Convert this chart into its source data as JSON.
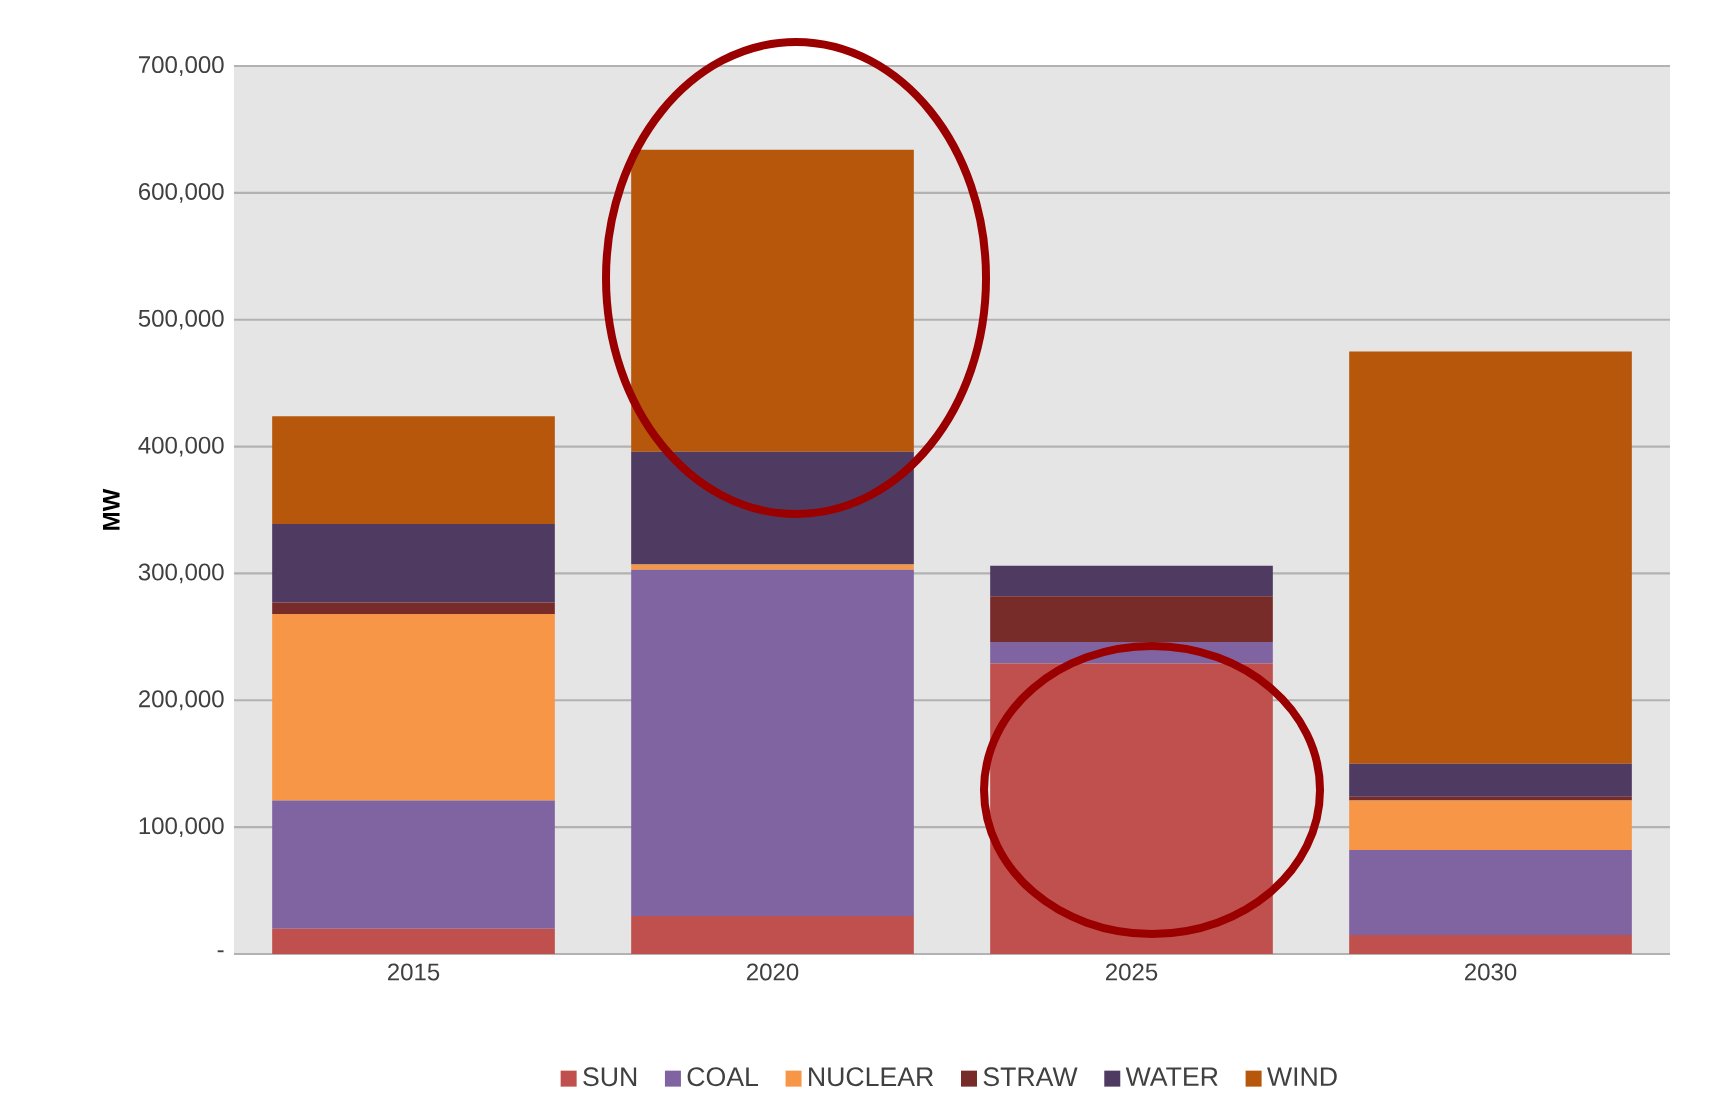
{
  "chart_data": {
    "type": "bar",
    "stacked": true,
    "ylabel": "MW",
    "categories": [
      "2015",
      "2020",
      "2025",
      "2030"
    ],
    "series": [
      {
        "name": "SUN",
        "color": "#c0504d",
        "values": [
          20000,
          30000,
          229000,
          15000
        ]
      },
      {
        "name": "COAL",
        "color": "#8064a2",
        "values": [
          101000,
          273000,
          17000,
          67000
        ]
      },
      {
        "name": "NUCLEAR",
        "color": "#f79646",
        "values": [
          147000,
          4000,
          0,
          39000
        ]
      },
      {
        "name": "STRAW",
        "color": "#772c2a",
        "values": [
          9000,
          0,
          36000,
          3000
        ]
      },
      {
        "name": "WATER",
        "color": "#4f3b62",
        "values": [
          62000,
          89000,
          24000,
          26000
        ]
      },
      {
        "name": "WIND",
        "color": "#b7570b",
        "values": [
          85000,
          238000,
          0,
          325000
        ]
      }
    ],
    "ylim": [
      0,
      700000
    ],
    "yticks": [
      {
        "value": 0,
        "label": "-"
      },
      {
        "value": 100000,
        "label": "100,000"
      },
      {
        "value": 200000,
        "label": "200,000"
      },
      {
        "value": 300000,
        "label": "300,000"
      },
      {
        "value": 400000,
        "label": "400,000"
      },
      {
        "value": 500000,
        "label": "500,000"
      },
      {
        "value": 600000,
        "label": "600,000"
      },
      {
        "value": 700000,
        "label": "700,000"
      }
    ],
    "grid": "y",
    "legend": "bottom"
  }
}
